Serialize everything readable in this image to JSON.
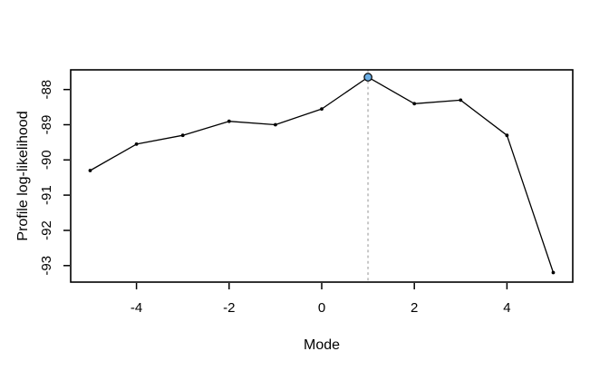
{
  "figure": {
    "background": "#ffffff"
  },
  "chart_data": {
    "type": "line",
    "title": "",
    "xlabel": "Mode",
    "ylabel": "Profile log-likelihood",
    "x": [
      -5,
      -4,
      -3,
      -2,
      -1,
      0,
      1,
      2,
      3,
      4,
      5
    ],
    "y": [
      -90.3,
      -89.55,
      -89.3,
      -88.9,
      -89.0,
      -88.55,
      -87.65,
      -88.4,
      -88.3,
      -89.3,
      -93.2
    ],
    "x_ticks": [
      -4,
      -2,
      0,
      2,
      4
    ],
    "y_ticks": [
      -88,
      -89,
      -90,
      -91,
      -92,
      -93
    ],
    "xlim": [
      -5.42,
      5.42
    ],
    "ylim": [
      -93.47,
      -87.44
    ],
    "grid": false,
    "legend": "none",
    "line_color": "#000000",
    "point_color": "#000000",
    "highlight_point": {
      "x": 1,
      "y": -87.65,
      "fill": "#6aade4",
      "stroke": "#000000"
    },
    "vline": {
      "x": 1,
      "style": "dotted",
      "color": "#c6c6c6"
    }
  }
}
